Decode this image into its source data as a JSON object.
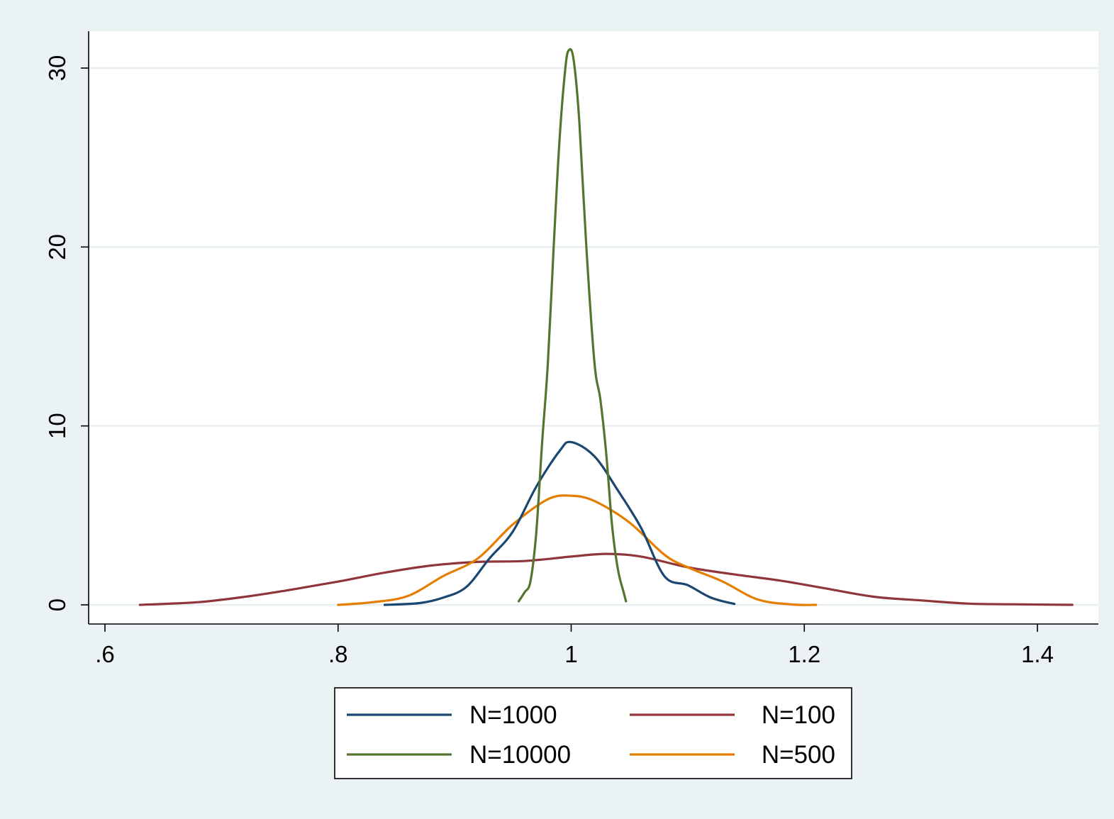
{
  "chart_data": {
    "type": "line",
    "title": "",
    "xlabel": "",
    "ylabel": "",
    "xlim": [
      0.6,
      1.4
    ],
    "ylim": [
      0,
      30
    ],
    "x_ticks": [
      0.6,
      0.8,
      1.0,
      1.2,
      1.4
    ],
    "x_tick_labels": [
      ".6",
      ".8",
      "1",
      "1.2",
      "1.4"
    ],
    "y_ticks": [
      0,
      10,
      20,
      30
    ],
    "y_tick_labels": [
      "0",
      "10",
      "20",
      "30"
    ],
    "grid": "horizontal",
    "legend_position": "bottom",
    "series": [
      {
        "name": "N=1000",
        "color": "#1a476f",
        "points": [
          [
            0.84,
            0
          ],
          [
            0.87,
            0.1
          ],
          [
            0.89,
            0.4
          ],
          [
            0.91,
            1.0
          ],
          [
            0.93,
            2.6
          ],
          [
            0.95,
            4.1
          ],
          [
            0.97,
            6.6
          ],
          [
            0.99,
            8.6
          ],
          [
            1.0,
            9.1
          ],
          [
            1.02,
            8.3
          ],
          [
            1.04,
            6.4
          ],
          [
            1.06,
            4.3
          ],
          [
            1.08,
            1.6
          ],
          [
            1.1,
            1.1
          ],
          [
            1.12,
            0.4
          ],
          [
            1.14,
            0.05
          ]
        ]
      },
      {
        "name": "N=100",
        "color": "#90353b",
        "points": [
          [
            0.63,
            0
          ],
          [
            0.68,
            0.15
          ],
          [
            0.72,
            0.45
          ],
          [
            0.76,
            0.85
          ],
          [
            0.8,
            1.3
          ],
          [
            0.84,
            1.8
          ],
          [
            0.88,
            2.2
          ],
          [
            0.92,
            2.4
          ],
          [
            0.96,
            2.45
          ],
          [
            1.0,
            2.7
          ],
          [
            1.03,
            2.85
          ],
          [
            1.06,
            2.7
          ],
          [
            1.1,
            2.1
          ],
          [
            1.14,
            1.7
          ],
          [
            1.18,
            1.35
          ],
          [
            1.22,
            0.9
          ],
          [
            1.26,
            0.45
          ],
          [
            1.3,
            0.25
          ],
          [
            1.34,
            0.07
          ],
          [
            1.38,
            0.03
          ],
          [
            1.43,
            0
          ]
        ]
      },
      {
        "name": "N=10000",
        "color": "#55752f",
        "points": [
          [
            0.955,
            0.2
          ],
          [
            0.96,
            0.7
          ],
          [
            0.965,
            1.3
          ],
          [
            0.97,
            4.0
          ],
          [
            0.975,
            9.0
          ],
          [
            0.98,
            13.5
          ],
          [
            0.985,
            20.0
          ],
          [
            0.99,
            26.0
          ],
          [
            0.995,
            30.0
          ],
          [
            0.998,
            31.0
          ],
          [
            1.002,
            30.5
          ],
          [
            1.007,
            27.0
          ],
          [
            1.013,
            20.0
          ],
          [
            1.02,
            13.5
          ],
          [
            1.025,
            11.5
          ],
          [
            1.03,
            8.5
          ],
          [
            1.035,
            4.5
          ],
          [
            1.04,
            2.0
          ],
          [
            1.045,
            0.7
          ],
          [
            1.047,
            0.2
          ]
        ]
      },
      {
        "name": "N=500",
        "color": "#e37e00",
        "points": [
          [
            0.8,
            0
          ],
          [
            0.83,
            0.15
          ],
          [
            0.86,
            0.5
          ],
          [
            0.89,
            1.6
          ],
          [
            0.92,
            2.6
          ],
          [
            0.95,
            4.5
          ],
          [
            0.98,
            5.9
          ],
          [
            1.0,
            6.1
          ],
          [
            1.02,
            5.8
          ],
          [
            1.05,
            4.6
          ],
          [
            1.08,
            2.8
          ],
          [
            1.1,
            2.1
          ],
          [
            1.13,
            1.3
          ],
          [
            1.16,
            0.3
          ],
          [
            1.19,
            0.02
          ],
          [
            1.21,
            0
          ]
        ]
      }
    ]
  }
}
